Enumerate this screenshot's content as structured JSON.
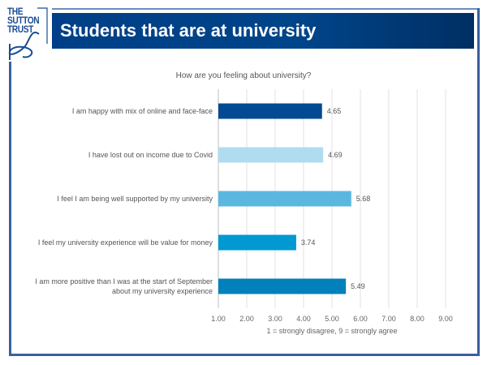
{
  "header": {
    "title": "Students that are at university",
    "logo_text": [
      "THE",
      "SUTTON",
      "TRUST"
    ]
  },
  "colors": {
    "brand": "#004489",
    "frame": "#3a5f9e"
  },
  "chart_data": {
    "type": "bar",
    "orientation": "horizontal",
    "title": "How are you feeling about university?",
    "xlabel": "1 = strongly disagree, 9 = strongly agree",
    "categories": [
      [
        "I am happy with mix of online and face-face"
      ],
      [
        "I have lost out on income due to Covid"
      ],
      [
        "I feel I am being well supported by my university"
      ],
      [
        "I feel my university experience will be value for money"
      ],
      [
        "I am more positive than I was at the start of September",
        "about my university experience"
      ]
    ],
    "values": [
      4.65,
      4.69,
      5.68,
      3.74,
      5.49
    ],
    "value_labels": [
      "4.65",
      "4.69",
      "5.68",
      "3.74",
      "5.49"
    ],
    "bar_colors": [
      "#044a93",
      "#b0dcf0",
      "#5ab8e0",
      "#0099d2",
      "#0081bb"
    ],
    "xlim": [
      1,
      9
    ],
    "ticks": [
      "1.00",
      "2.00",
      "3.00",
      "4.00",
      "5.00",
      "6.00",
      "7.00",
      "8.00",
      "9.00"
    ],
    "grid": true,
    "legend": "none"
  }
}
